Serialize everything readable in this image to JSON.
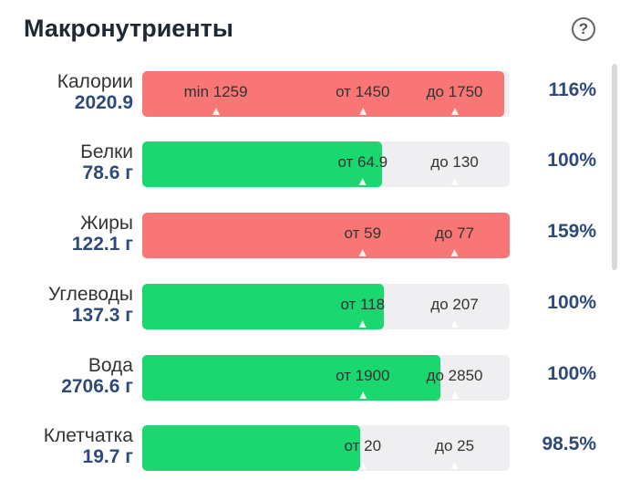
{
  "header": {
    "title": "Макронутриенты",
    "help_icon": "?"
  },
  "colors": {
    "over": "#f97676",
    "ok": "#1bd770",
    "track": "#efeff1",
    "accent": "#2e4a7a"
  },
  "rows": [
    {
      "name": "Калории",
      "amount": "2020.9",
      "percent": "116%",
      "fill_fraction": 0.985,
      "status": "over",
      "markers": [
        {
          "label": "min 1259",
          "pos": 0.2
        },
        {
          "label": "от 1450",
          "pos": 0.6
        },
        {
          "label": "до 1750",
          "pos": 0.85
        }
      ]
    },
    {
      "name": "Белки",
      "amount": "78.6 г",
      "percent": "100%",
      "fill_fraction": 0.653,
      "status": "ok",
      "markers": [
        {
          "label": "от 64.9",
          "pos": 0.6
        },
        {
          "label": "до 130",
          "pos": 0.85
        }
      ]
    },
    {
      "name": "Жиры",
      "amount": "122.1 г",
      "percent": "159%",
      "fill_fraction": 1.0,
      "status": "over",
      "markers": [
        {
          "label": "от 59",
          "pos": 0.6
        },
        {
          "label": "до 77",
          "pos": 0.85
        }
      ]
    },
    {
      "name": "Углеводы",
      "amount": "137.3 г",
      "percent": "100%",
      "fill_fraction": 0.658,
      "status": "ok",
      "markers": [
        {
          "label": "от 118",
          "pos": 0.6
        },
        {
          "label": "до 207",
          "pos": 0.85
        }
      ]
    },
    {
      "name": "Вода",
      "amount": "2706.6 г",
      "percent": "100%",
      "fill_fraction": 0.812,
      "status": "ok",
      "markers": [
        {
          "label": "от 1900",
          "pos": 0.6
        },
        {
          "label": "до 2850",
          "pos": 0.85
        }
      ]
    },
    {
      "name": "Клетчатка",
      "amount": "19.7 г",
      "percent": "98.5%",
      "fill_fraction": 0.593,
      "status": "ok",
      "markers": [
        {
          "label": "от 20",
          "pos": 0.6
        },
        {
          "label": "до 25",
          "pos": 0.85
        }
      ]
    }
  ]
}
